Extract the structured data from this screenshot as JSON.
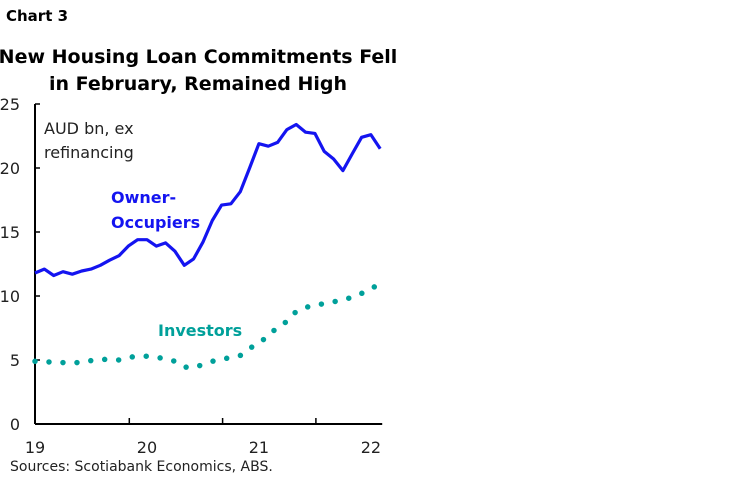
{
  "header": {
    "label": "Chart 3"
  },
  "chart_data": {
    "type": "line",
    "title": [
      "New Housing Loan Commitments Fell",
      "in February, Remained High"
    ],
    "unit_note": [
      "AUD bn, ex",
      "refinancing"
    ],
    "x_start": "2019-01",
    "x_frequency": "monthly",
    "x_tick_labels": [
      "19",
      "20",
      "21",
      "22"
    ],
    "ylim": [
      0,
      25
    ],
    "y_ticks": [
      0,
      5,
      10,
      15,
      20,
      25
    ],
    "grid": false,
    "series": [
      {
        "name": "Owner-Occupiers",
        "color": "#1414f0",
        "style": "solid",
        "values": [
          11.8,
          12.1,
          11.6,
          11.9,
          11.7,
          11.95,
          12.1,
          12.4,
          12.8,
          13.15,
          13.9,
          14.4,
          14.4,
          13.9,
          14.15,
          13.5,
          12.4,
          12.9,
          14.2,
          15.9,
          17.1,
          17.2,
          18.15,
          20.0,
          21.9,
          21.7,
          22.0,
          23.0,
          23.4,
          22.8,
          22.7,
          21.3,
          20.7,
          19.8,
          21.1,
          22.4,
          22.6,
          21.5
        ]
      },
      {
        "name": "Investors",
        "color": "#00a09a",
        "style": "dotted",
        "values": [
          4.9,
          4.87,
          4.83,
          4.8,
          4.8,
          4.8,
          4.95,
          5.05,
          5.05,
          5.0,
          5.2,
          5.3,
          5.3,
          5.2,
          5.1,
          4.9,
          4.45,
          4.4,
          4.65,
          4.9,
          5.05,
          5.2,
          5.35,
          5.9,
          6.35,
          6.85,
          7.6,
          8.0,
          8.8,
          9.1,
          9.3,
          9.4,
          9.55,
          9.7,
          9.9,
          10.2,
          10.6,
          10.9
        ]
      }
    ]
  },
  "footer": {
    "source": "Sources: Scotiabank Economics, ABS."
  }
}
